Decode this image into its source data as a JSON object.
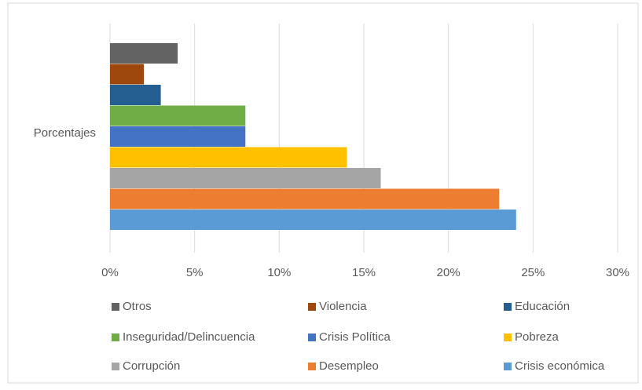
{
  "chart_data": {
    "type": "bar",
    "horizontal": true,
    "categories": [
      "Porcentajes"
    ],
    "series": [
      {
        "name": "Otros",
        "color": "#636363",
        "values": [
          4
        ]
      },
      {
        "name": "Violencia",
        "color": "#9e480e",
        "values": [
          2
        ]
      },
      {
        "name": "Educación",
        "color": "#255e91",
        "values": [
          3
        ]
      },
      {
        "name": "Inseguridad/Delincuencia",
        "color": "#70ad47",
        "values": [
          8
        ]
      },
      {
        "name": "Crisis Política",
        "color": "#4472c4",
        "values": [
          8
        ]
      },
      {
        "name": "Pobreza",
        "color": "#ffc000",
        "values": [
          14
        ]
      },
      {
        "name": "Corrupción",
        "color": "#a5a5a5",
        "values": [
          16
        ]
      },
      {
        "name": "Desempleo",
        "color": "#ed7d31",
        "values": [
          23
        ]
      },
      {
        "name": "Crisis económica",
        "color": "#5b9bd5",
        "values": [
          24
        ]
      }
    ],
    "xlim": [
      0,
      30
    ],
    "xticks": [
      {
        "value": 0,
        "label": "0%"
      },
      {
        "value": 5,
        "label": "5%"
      },
      {
        "value": 10,
        "label": "10%"
      },
      {
        "value": 15,
        "label": "15%"
      },
      {
        "value": 20,
        "label": "20%"
      },
      {
        "value": 25,
        "label": "25%"
      },
      {
        "value": 30,
        "label": "30%"
      }
    ],
    "grid": true,
    "legend": "bottom"
  }
}
